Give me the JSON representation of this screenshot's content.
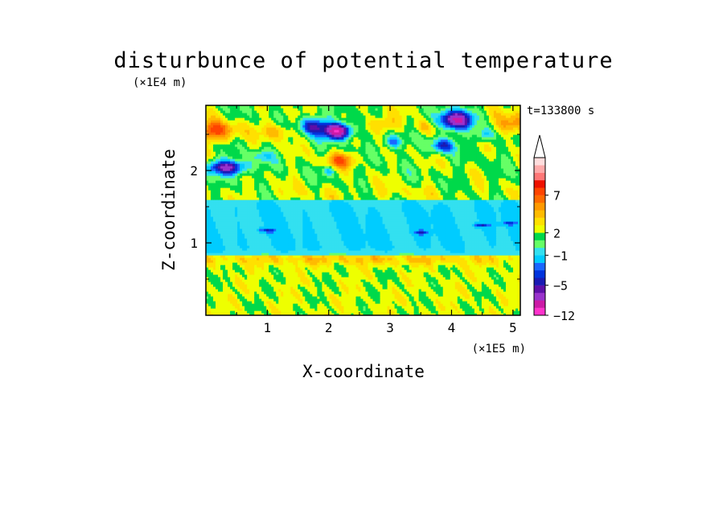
{
  "chart_data": {
    "type": "heatmap",
    "title": "disturbunce of potential temperature",
    "xlabel": "X-coordinate",
    "ylabel": "Z-coordinate",
    "x_unit": "(×1E5 m)",
    "y_unit": "(×1E4 m)",
    "time_label": "t=133800 s",
    "xlim": [
      0,
      5.12
    ],
    "ylim": [
      0,
      2.9
    ],
    "x_ticks": [
      1,
      2,
      3,
      4,
      5
    ],
    "x_tick_labels": [
      "1",
      "2",
      "3",
      "4",
      "5"
    ],
    "y_ticks": [
      1,
      2
    ],
    "y_tick_labels": [
      "1",
      "2"
    ],
    "colorbar": {
      "levels": [
        -12,
        -10,
        -8,
        -6,
        -5,
        -4,
        -3,
        -2,
        -1,
        0,
        1,
        2,
        3,
        4,
        5,
        6,
        7,
        8,
        9,
        10,
        11
      ],
      "colors": [
        "#ff33cc",
        "#cc1aa6",
        "#9933cc",
        "#5e0fa8",
        "#1a1ab3",
        "#0033dd",
        "#1a66ff",
        "#00ccff",
        "#33e0f0",
        "#66ff66",
        "#00d94a",
        "#eeff00",
        "#ffe000",
        "#ffbb00",
        "#ff9900",
        "#ff6a00",
        "#ff4400",
        "#ee1100",
        "#ff7777",
        "#ffaaaa",
        "#ffdddd"
      ],
      "labeled_values": [
        -12,
        -5,
        -1,
        2,
        7
      ],
      "labels": [
        "−12",
        "−5",
        "−1",
        "2",
        "7"
      ],
      "extend": "max"
    },
    "features": [
      {
        "x": 2.15,
        "z": 2.55,
        "value": -11,
        "desc": "strong negative (purple) core"
      },
      {
        "x": 4.05,
        "z": 2.7,
        "value": -9,
        "desc": "negative (purple) core"
      },
      {
        "x": 1.75,
        "z": 2.6,
        "value": -6,
        "desc": "negative (blue)"
      },
      {
        "x": 0.3,
        "z": 2.05,
        "value": -6,
        "desc": "negative (blue)"
      },
      {
        "x": 0.2,
        "z": 2.55,
        "value": 7,
        "desc": "positive (red)"
      },
      {
        "x": 5.0,
        "z": 2.65,
        "value": 6,
        "desc": "positive (orange)"
      },
      {
        "x": 2.2,
        "z": 2.15,
        "value": 6,
        "desc": "positive (orange)"
      },
      {
        "x": 2.6,
        "z": 1.1,
        "value": -1,
        "desc": "cold (cyan) band"
      },
      {
        "x": 1.0,
        "z": 0.5,
        "value": 2,
        "desc": "warm (yellow) lower layer"
      }
    ]
  }
}
